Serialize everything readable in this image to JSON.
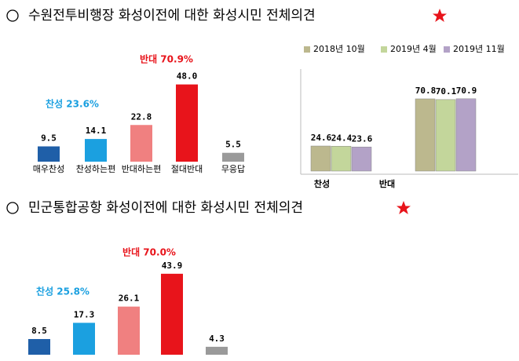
{
  "headings": [
    "수원전투비행장 화성이전에 대한 화성시민 전체의견",
    "민군통합공항 화성이전에 대한 화성시민 전체의견"
  ],
  "chart_data": [
    {
      "type": "bar",
      "categories": [
        "매우찬성",
        "찬성하는편",
        "반대하는편",
        "절대반대",
        "무응답"
      ],
      "values": [
        9.5,
        14.1,
        22.8,
        48.0,
        5.5
      ],
      "value_labels": [
        "9.5",
        "14.1",
        "22.8",
        "48.0",
        "5.5"
      ],
      "colors": [
        "#1f5fa8",
        "#1ba0e0",
        "#f08080",
        "#e8141b",
        "#9a9a9a"
      ],
      "annotations": [
        "찬성 23.6%",
        "반대 70.9%"
      ]
    },
    {
      "type": "grouped_bar",
      "categories": [
        "찬성",
        "반대"
      ],
      "series": [
        {
          "name": "2018년 10월",
          "color": "#bcb88e",
          "values": [
            24.6,
            70.8
          ]
        },
        {
          "name": "2019년 4월",
          "color": "#c3d69b",
          "values": [
            24.4,
            70.1
          ]
        },
        {
          "name": "2019년 11월",
          "color": "#b3a2c7",
          "values": [
            23.6,
            70.9
          ]
        }
      ],
      "legend": "top"
    },
    {
      "type": "bar",
      "values": [
        8.5,
        17.3,
        26.1,
        43.9,
        4.3
      ],
      "colors": [
        "#1f5fa8",
        "#1ba0e0",
        "#f08080",
        "#e8141b",
        "#9a9a9a"
      ],
      "annotations": [
        "찬성 25.8%",
        "반대 70.0%"
      ]
    }
  ]
}
